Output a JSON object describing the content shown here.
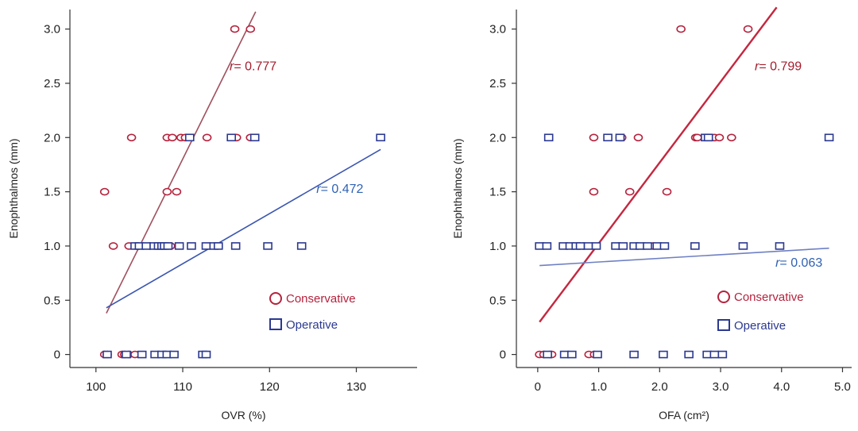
{
  "colors": {
    "conservative": "#b5223d",
    "operative": "#2b3990",
    "conservative_line_left": "#a0505e",
    "operative_line_left": "#3a55b0",
    "conservative_line_right": "#c4273f",
    "operative_line_right": "#6f80c4",
    "r_conservative": "#a61d2e",
    "r_operative": "#2f62b5",
    "axis": "#333333"
  },
  "chart_data": [
    {
      "type": "scatter",
      "xlabel": "OVR (%)",
      "ylabel": "Enophthalmos (mm)",
      "xlim": [
        97,
        137
      ],
      "ylim": [
        -0.12,
        3.18
      ],
      "xticks": [
        100,
        110,
        120,
        130
      ],
      "xtick_labels": [
        "100",
        "110",
        "120",
        "130"
      ],
      "yticks": [
        0,
        0.5,
        1.0,
        1.5,
        2.0,
        2.5,
        3.0
      ],
      "ytick_labels": [
        "0",
        "0.5",
        "1.0",
        "1.5",
        "2.0",
        "2.5",
        "3.0"
      ],
      "grid": false,
      "legend_position": "lower-right",
      "series": [
        {
          "name": "Conservative",
          "marker": "circle",
          "points": [
            [
              101.0,
              0
            ],
            [
              101.3,
              0
            ],
            [
              103.0,
              0
            ],
            [
              103.3,
              0
            ],
            [
              103.8,
              0
            ],
            [
              104.5,
              0
            ],
            [
              101.0,
              1.5
            ],
            [
              108.2,
              1.5
            ],
            [
              109.3,
              1.5
            ],
            [
              102.0,
              1.0
            ],
            [
              103.8,
              1.0
            ],
            [
              104.8,
              1.0
            ],
            [
              106.2,
              1.0
            ],
            [
              107.6,
              1.0
            ],
            [
              108.6,
              1.0
            ],
            [
              104.1,
              2.0
            ],
            [
              108.2,
              2.0
            ],
            [
              108.8,
              2.0
            ],
            [
              109.8,
              2.0
            ],
            [
              110.3,
              2.0
            ],
            [
              112.8,
              2.0
            ],
            [
              116.2,
              2.0
            ],
            [
              117.8,
              2.0
            ],
            [
              116.0,
              3.0
            ],
            [
              117.8,
              3.0
            ]
          ],
          "fit": {
            "x": [
              101.2,
              118.4
            ],
            "y": [
              0.38,
              3.16
            ]
          },
          "r_label": {
            "prefix": "r",
            "text": "= 0.777",
            "at": [
              115.4,
              2.62
            ]
          }
        },
        {
          "name": "Operative",
          "marker": "square",
          "points": [
            [
              101.3,
              0
            ],
            [
              103.5,
              0
            ],
            [
              105.3,
              0
            ],
            [
              106.8,
              0
            ],
            [
              107.6,
              0
            ],
            [
              108.2,
              0
            ],
            [
              109.0,
              0
            ],
            [
              112.3,
              0
            ],
            [
              112.7,
              0
            ],
            [
              104.5,
              1.0
            ],
            [
              105.0,
              1.0
            ],
            [
              105.8,
              1.0
            ],
            [
              106.7,
              1.0
            ],
            [
              107.2,
              1.0
            ],
            [
              107.6,
              1.0
            ],
            [
              107.9,
              1.0
            ],
            [
              108.3,
              1.0
            ],
            [
              109.6,
              1.0
            ],
            [
              111.0,
              1.0
            ],
            [
              112.7,
              1.0
            ],
            [
              113.6,
              1.0
            ],
            [
              114.1,
              1.0
            ],
            [
              116.1,
              1.0
            ],
            [
              119.8,
              1.0
            ],
            [
              123.7,
              1.0
            ],
            [
              110.8,
              2.0
            ],
            [
              115.6,
              2.0
            ],
            [
              118.3,
              2.0
            ],
            [
              132.8,
              2.0
            ]
          ],
          "fit": {
            "x": [
              101.2,
              132.8
            ],
            "y": [
              0.43,
              1.89
            ]
          },
          "r_label": {
            "prefix": "r",
            "text": "= 0.472",
            "at": [
              125.4,
              1.49
            ]
          }
        }
      ]
    },
    {
      "type": "scatter",
      "xlabel": "OFA (cm²)",
      "ylabel": "Enophthalmos (mm)",
      "xlim": [
        -0.35,
        5.15
      ],
      "ylim": [
        -0.12,
        3.18
      ],
      "xticks": [
        0,
        1,
        2,
        3,
        4,
        5
      ],
      "xtick_labels": [
        "0",
        "1.0",
        "2.0",
        "3.0",
        "4.0",
        "5.0"
      ],
      "yticks": [
        0,
        0.5,
        1.0,
        1.5,
        2.0,
        2.5,
        3.0
      ],
      "ytick_labels": [
        "0",
        "0.5",
        "1.0",
        "1.5",
        "2.0",
        "2.5",
        "3.0"
      ],
      "grid": false,
      "legend_position": "lower-right",
      "series": [
        {
          "name": "Conservative",
          "marker": "circle",
          "points": [
            [
              0.03,
              0
            ],
            [
              0.1,
              0
            ],
            [
              0.2,
              0
            ],
            [
              0.23,
              0
            ],
            [
              0.84,
              0
            ],
            [
              0.93,
              0
            ],
            [
              0.75,
              1.0
            ],
            [
              1.33,
              1.0
            ],
            [
              1.9,
              1.0
            ],
            [
              0.92,
              1.5
            ],
            [
              1.51,
              1.5
            ],
            [
              2.12,
              1.5
            ],
            [
              0.92,
              2.0
            ],
            [
              1.35,
              2.0
            ],
            [
              1.38,
              2.0
            ],
            [
              1.65,
              2.0
            ],
            [
              2.59,
              2.0
            ],
            [
              2.62,
              2.0
            ],
            [
              2.85,
              2.0
            ],
            [
              2.9,
              2.0
            ],
            [
              2.98,
              2.0
            ],
            [
              3.18,
              2.0
            ],
            [
              2.35,
              3.0
            ],
            [
              3.45,
              3.0
            ]
          ],
          "fit": {
            "x": [
              0.03,
              3.92
            ],
            "y": [
              0.3,
              3.2
            ]
          },
          "r_label": {
            "prefix": "r",
            "text": "= 0.799",
            "at": [
              3.56,
              2.62
            ]
          }
        },
        {
          "name": "Operative",
          "marker": "square",
          "points": [
            [
              0.16,
              0
            ],
            [
              0.44,
              0
            ],
            [
              0.56,
              0
            ],
            [
              0.98,
              0
            ],
            [
              1.58,
              0
            ],
            [
              2.06,
              0
            ],
            [
              2.48,
              0
            ],
            [
              2.78,
              0
            ],
            [
              2.9,
              0
            ],
            [
              3.03,
              0
            ],
            [
              0.03,
              1.0
            ],
            [
              0.15,
              1.0
            ],
            [
              0.42,
              1.0
            ],
            [
              0.53,
              1.0
            ],
            [
              0.63,
              1.0
            ],
            [
              0.7,
              1.0
            ],
            [
              0.83,
              1.0
            ],
            [
              0.96,
              1.0
            ],
            [
              1.28,
              1.0
            ],
            [
              1.4,
              1.0
            ],
            [
              1.58,
              1.0
            ],
            [
              1.68,
              1.0
            ],
            [
              1.8,
              1.0
            ],
            [
              1.96,
              1.0
            ],
            [
              2.08,
              1.0
            ],
            [
              2.58,
              1.0
            ],
            [
              3.37,
              1.0
            ],
            [
              3.97,
              1.0
            ],
            [
              0.18,
              2.0
            ],
            [
              1.15,
              2.0
            ],
            [
              1.35,
              2.0
            ],
            [
              2.75,
              2.0
            ],
            [
              2.8,
              2.0
            ],
            [
              4.78,
              2.0
            ]
          ],
          "fit": {
            "x": [
              0.03,
              4.78
            ],
            "y": [
              0.82,
              0.98
            ]
          },
          "r_label": {
            "prefix": "r",
            "text": "= 0.063",
            "at": [
              3.9,
              0.81
            ]
          }
        }
      ]
    }
  ]
}
